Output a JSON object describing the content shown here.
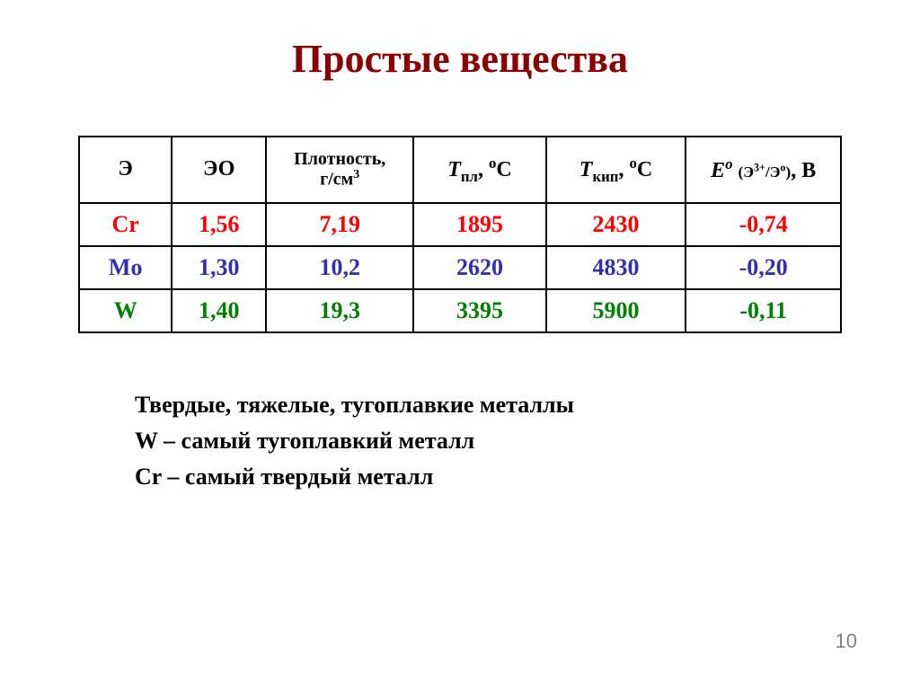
{
  "title": {
    "text": "Простые вещества",
    "color": "#8b0000",
    "fontsize": 44
  },
  "table": {
    "header_fontsize": 24,
    "cell_fontsize": 26,
    "border_color": "#000000",
    "columns": {
      "elem": {
        "label": "Э"
      },
      "eo": {
        "label": "ЭО"
      },
      "density": {
        "line1": "Плотность,",
        "line2_html": "г/см<span class='sup'>3</span>",
        "fontsize": 20
      },
      "t_melt": {
        "html": "<span class='hdr-italic'>T</span><span class='sub'>пл</span>, <span class='sup'>o</span>C"
      },
      "t_boil": {
        "html": "<span class='hdr-italic'>T</span><span class='sub'>кип</span>, <span class='sup'>o</span>C"
      },
      "potential": {
        "html": "<span class='hdr-italic'>E<span class='sup'>o</span></span> <span style='font-size:0.72em'>(Э<span class='sup'>3+</span>/Э<span class='sup'>o</span>)</span>, В"
      }
    },
    "rows": [
      {
        "color": "#ff0000",
        "elem": "Cr",
        "eo": "1,56",
        "density": "7,19",
        "t_melt": "1895",
        "t_boil": "2430",
        "potential": "-0,74"
      },
      {
        "color": "#3030b0",
        "elem": "Mo",
        "eo": "1,30",
        "density": "10,2",
        "t_melt": "2620",
        "t_boil": "4830",
        "potential": "-0,20"
      },
      {
        "color": "#008000",
        "elem": "W",
        "eo": "1,40",
        "density": "19,3",
        "t_melt": "3395",
        "t_boil": "5900",
        "potential": "-0,11"
      }
    ]
  },
  "notes": {
    "fontsize": 26,
    "color": "#000000",
    "lines": [
      "Твердые, тяжелые, тугоплавкие металлы",
      "W – самый тугоплавкий металл",
      "Cr – самый твердый металл"
    ]
  },
  "page_number": {
    "text": "10",
    "fontsize": 22,
    "color": "#808080"
  }
}
